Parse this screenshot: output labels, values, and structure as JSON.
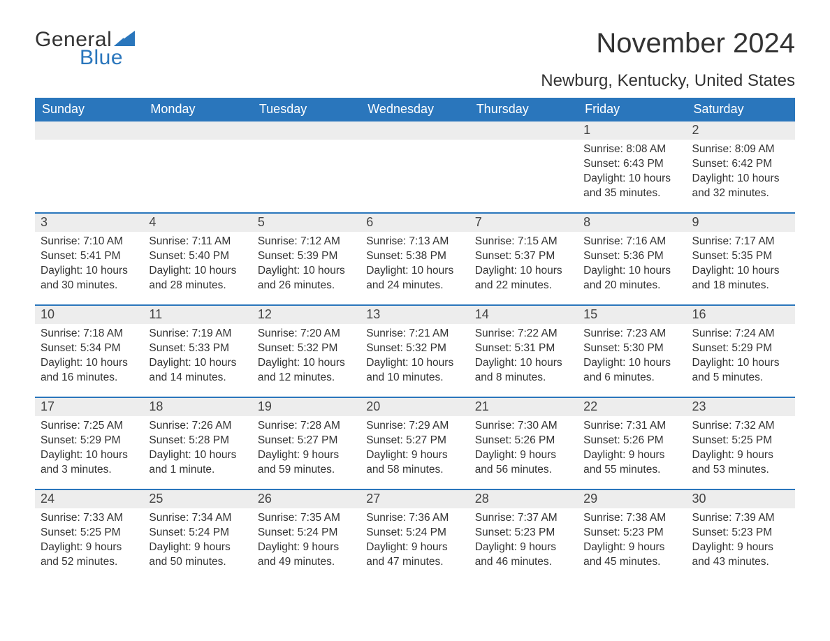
{
  "brand": {
    "word1": "General",
    "word2": "Blue",
    "sail_color": "#2a76bc",
    "word1_color": "#333333",
    "word2_color": "#2a76bc"
  },
  "title": "November 2024",
  "location": "Newburg, Kentucky, United States",
  "colors": {
    "header_bg": "#2a76bc",
    "header_text": "#ffffff",
    "row_border": "#2a76bc",
    "daynum_bg": "#ededed",
    "text": "#333333",
    "background": "#ffffff"
  },
  "weekdays": [
    "Sunday",
    "Monday",
    "Tuesday",
    "Wednesday",
    "Thursday",
    "Friday",
    "Saturday"
  ],
  "weeks": [
    [
      {
        "day": "",
        "sunrise": "",
        "sunset": "",
        "daylight": ""
      },
      {
        "day": "",
        "sunrise": "",
        "sunset": "",
        "daylight": ""
      },
      {
        "day": "",
        "sunrise": "",
        "sunset": "",
        "daylight": ""
      },
      {
        "day": "",
        "sunrise": "",
        "sunset": "",
        "daylight": ""
      },
      {
        "day": "",
        "sunrise": "",
        "sunset": "",
        "daylight": ""
      },
      {
        "day": "1",
        "sunrise": "Sunrise: 8:08 AM",
        "sunset": "Sunset: 6:43 PM",
        "daylight": "Daylight: 10 hours and 35 minutes."
      },
      {
        "day": "2",
        "sunrise": "Sunrise: 8:09 AM",
        "sunset": "Sunset: 6:42 PM",
        "daylight": "Daylight: 10 hours and 32 minutes."
      }
    ],
    [
      {
        "day": "3",
        "sunrise": "Sunrise: 7:10 AM",
        "sunset": "Sunset: 5:41 PM",
        "daylight": "Daylight: 10 hours and 30 minutes."
      },
      {
        "day": "4",
        "sunrise": "Sunrise: 7:11 AM",
        "sunset": "Sunset: 5:40 PM",
        "daylight": "Daylight: 10 hours and 28 minutes."
      },
      {
        "day": "5",
        "sunrise": "Sunrise: 7:12 AM",
        "sunset": "Sunset: 5:39 PM",
        "daylight": "Daylight: 10 hours and 26 minutes."
      },
      {
        "day": "6",
        "sunrise": "Sunrise: 7:13 AM",
        "sunset": "Sunset: 5:38 PM",
        "daylight": "Daylight: 10 hours and 24 minutes."
      },
      {
        "day": "7",
        "sunrise": "Sunrise: 7:15 AM",
        "sunset": "Sunset: 5:37 PM",
        "daylight": "Daylight: 10 hours and 22 minutes."
      },
      {
        "day": "8",
        "sunrise": "Sunrise: 7:16 AM",
        "sunset": "Sunset: 5:36 PM",
        "daylight": "Daylight: 10 hours and 20 minutes."
      },
      {
        "day": "9",
        "sunrise": "Sunrise: 7:17 AM",
        "sunset": "Sunset: 5:35 PM",
        "daylight": "Daylight: 10 hours and 18 minutes."
      }
    ],
    [
      {
        "day": "10",
        "sunrise": "Sunrise: 7:18 AM",
        "sunset": "Sunset: 5:34 PM",
        "daylight": "Daylight: 10 hours and 16 minutes."
      },
      {
        "day": "11",
        "sunrise": "Sunrise: 7:19 AM",
        "sunset": "Sunset: 5:33 PM",
        "daylight": "Daylight: 10 hours and 14 minutes."
      },
      {
        "day": "12",
        "sunrise": "Sunrise: 7:20 AM",
        "sunset": "Sunset: 5:32 PM",
        "daylight": "Daylight: 10 hours and 12 minutes."
      },
      {
        "day": "13",
        "sunrise": "Sunrise: 7:21 AM",
        "sunset": "Sunset: 5:32 PM",
        "daylight": "Daylight: 10 hours and 10 minutes."
      },
      {
        "day": "14",
        "sunrise": "Sunrise: 7:22 AM",
        "sunset": "Sunset: 5:31 PM",
        "daylight": "Daylight: 10 hours and 8 minutes."
      },
      {
        "day": "15",
        "sunrise": "Sunrise: 7:23 AM",
        "sunset": "Sunset: 5:30 PM",
        "daylight": "Daylight: 10 hours and 6 minutes."
      },
      {
        "day": "16",
        "sunrise": "Sunrise: 7:24 AM",
        "sunset": "Sunset: 5:29 PM",
        "daylight": "Daylight: 10 hours and 5 minutes."
      }
    ],
    [
      {
        "day": "17",
        "sunrise": "Sunrise: 7:25 AM",
        "sunset": "Sunset: 5:29 PM",
        "daylight": "Daylight: 10 hours and 3 minutes."
      },
      {
        "day": "18",
        "sunrise": "Sunrise: 7:26 AM",
        "sunset": "Sunset: 5:28 PM",
        "daylight": "Daylight: 10 hours and 1 minute."
      },
      {
        "day": "19",
        "sunrise": "Sunrise: 7:28 AM",
        "sunset": "Sunset: 5:27 PM",
        "daylight": "Daylight: 9 hours and 59 minutes."
      },
      {
        "day": "20",
        "sunrise": "Sunrise: 7:29 AM",
        "sunset": "Sunset: 5:27 PM",
        "daylight": "Daylight: 9 hours and 58 minutes."
      },
      {
        "day": "21",
        "sunrise": "Sunrise: 7:30 AM",
        "sunset": "Sunset: 5:26 PM",
        "daylight": "Daylight: 9 hours and 56 minutes."
      },
      {
        "day": "22",
        "sunrise": "Sunrise: 7:31 AM",
        "sunset": "Sunset: 5:26 PM",
        "daylight": "Daylight: 9 hours and 55 minutes."
      },
      {
        "day": "23",
        "sunrise": "Sunrise: 7:32 AM",
        "sunset": "Sunset: 5:25 PM",
        "daylight": "Daylight: 9 hours and 53 minutes."
      }
    ],
    [
      {
        "day": "24",
        "sunrise": "Sunrise: 7:33 AM",
        "sunset": "Sunset: 5:25 PM",
        "daylight": "Daylight: 9 hours and 52 minutes."
      },
      {
        "day": "25",
        "sunrise": "Sunrise: 7:34 AM",
        "sunset": "Sunset: 5:24 PM",
        "daylight": "Daylight: 9 hours and 50 minutes."
      },
      {
        "day": "26",
        "sunrise": "Sunrise: 7:35 AM",
        "sunset": "Sunset: 5:24 PM",
        "daylight": "Daylight: 9 hours and 49 minutes."
      },
      {
        "day": "27",
        "sunrise": "Sunrise: 7:36 AM",
        "sunset": "Sunset: 5:24 PM",
        "daylight": "Daylight: 9 hours and 47 minutes."
      },
      {
        "day": "28",
        "sunrise": "Sunrise: 7:37 AM",
        "sunset": "Sunset: 5:23 PM",
        "daylight": "Daylight: 9 hours and 46 minutes."
      },
      {
        "day": "29",
        "sunrise": "Sunrise: 7:38 AM",
        "sunset": "Sunset: 5:23 PM",
        "daylight": "Daylight: 9 hours and 45 minutes."
      },
      {
        "day": "30",
        "sunrise": "Sunrise: 7:39 AM",
        "sunset": "Sunset: 5:23 PM",
        "daylight": "Daylight: 9 hours and 43 minutes."
      }
    ]
  ]
}
